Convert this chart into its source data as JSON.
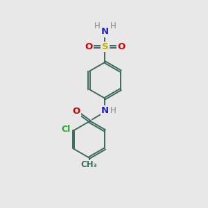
{
  "background_color": "#e8e8e8",
  "bond_color": "#3d6b5e",
  "text_colors": {
    "N": "#2222cc",
    "O": "#dd0000",
    "S": "#ccaa00",
    "Cl": "#22aa22",
    "H": "#888888",
    "C": "#3d6b5e"
  },
  "font_size": 8.5,
  "figsize": [
    3.0,
    3.0
  ],
  "dpi": 100
}
